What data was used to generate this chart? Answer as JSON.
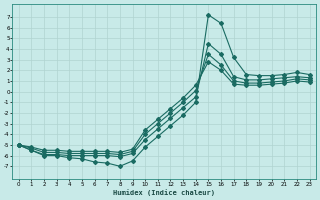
{
  "xlabel": "Humidex (Indice chaleur)",
  "bg_color": "#c8eae8",
  "line_color": "#1a6b62",
  "grid_color": "#b0d4d0",
  "xlim": [
    -0.5,
    23.5
  ],
  "ylim": [
    -8.2,
    8.2
  ],
  "yticks": [
    7,
    6,
    5,
    4,
    3,
    2,
    1,
    0,
    -1,
    -2,
    -3,
    -4,
    -5,
    -6,
    -7
  ],
  "xticks": [
    0,
    1,
    2,
    3,
    4,
    5,
    6,
    7,
    8,
    9,
    10,
    11,
    12,
    13,
    14,
    15,
    16,
    17,
    18,
    19,
    20,
    21,
    22,
    23
  ],
  "line1_x": [
    0,
    1,
    2,
    3,
    4,
    5,
    6,
    7,
    8,
    9,
    10,
    11,
    12,
    13,
    14,
    15,
    16,
    17,
    18,
    19,
    20,
    21,
    22,
    23
  ],
  "line1_y": [
    -5.0,
    -5.5,
    -6.0,
    -6.0,
    -6.2,
    -6.3,
    -6.6,
    -6.7,
    -7.0,
    -6.5,
    -5.2,
    -4.2,
    -3.2,
    -2.2,
    -1.0,
    7.2,
    6.4,
    3.2,
    1.6,
    1.5,
    1.5,
    1.6,
    1.8,
    1.6
  ],
  "line2_x": [
    0,
    1,
    2,
    3,
    4,
    5,
    6,
    7,
    8,
    9,
    10,
    11,
    12,
    13,
    14,
    15,
    16,
    17,
    18,
    19,
    20,
    21,
    22,
    23
  ],
  "line2_y": [
    -5.0,
    -5.5,
    -5.9,
    -5.9,
    -6.0,
    -6.0,
    -6.0,
    -6.0,
    -6.1,
    -5.8,
    -4.5,
    -3.5,
    -2.5,
    -1.5,
    -0.5,
    4.5,
    3.5,
    1.4,
    1.1,
    1.1,
    1.2,
    1.3,
    1.4,
    1.3
  ],
  "line3_x": [
    0,
    1,
    2,
    3,
    4,
    5,
    6,
    7,
    8,
    9,
    10,
    11,
    12,
    13,
    14,
    15,
    16,
    17,
    18,
    19,
    20,
    21,
    22,
    23
  ],
  "line3_y": [
    -5.0,
    -5.3,
    -5.7,
    -5.7,
    -5.8,
    -5.8,
    -5.8,
    -5.8,
    -5.9,
    -5.6,
    -4.0,
    -3.0,
    -2.0,
    -1.0,
    0.1,
    3.5,
    2.5,
    1.0,
    0.8,
    0.8,
    0.9,
    1.0,
    1.2,
    1.1
  ],
  "line4_x": [
    0,
    1,
    2,
    3,
    4,
    5,
    6,
    7,
    8,
    9,
    10,
    11,
    12,
    13,
    14,
    15,
    16,
    17,
    18,
    19,
    20,
    21,
    22,
    23
  ],
  "line4_y": [
    -5.0,
    -5.2,
    -5.5,
    -5.5,
    -5.6,
    -5.6,
    -5.6,
    -5.6,
    -5.7,
    -5.4,
    -3.6,
    -2.6,
    -1.6,
    -0.6,
    0.6,
    2.8,
    2.0,
    0.7,
    0.6,
    0.6,
    0.7,
    0.8,
    1.0,
    0.9
  ]
}
